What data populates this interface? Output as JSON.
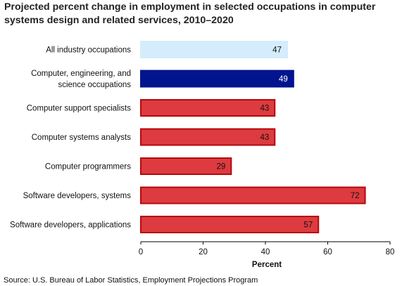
{
  "chart_data": {
    "type": "bar",
    "orientation": "horizontal",
    "title": "Projected percent change in employment in selected occupations in computer systems design and related services, 2010–2020",
    "xlabel": "Percent",
    "ylabel": "",
    "xlim": [
      0,
      80
    ],
    "xticks": [
      "0",
      "20",
      "40",
      "60",
      "80"
    ],
    "grid": false,
    "legend": "none",
    "bars": [
      {
        "label": "All industry occupations",
        "value": 47,
        "value_label": "47",
        "fill": "#d4ecfb",
        "stroke": "#d4ecfb",
        "label_color": "#111111"
      },
      {
        "label": "Computer, engineering, and|science occupations",
        "value": 49,
        "value_label": "49",
        "fill": "#02158e",
        "stroke": "#02158e",
        "label_color": "#ffffff"
      },
      {
        "label": "Computer support specialists",
        "value": 43,
        "value_label": "43",
        "fill": "#dd3b3f",
        "stroke": "#b5080d",
        "label_color": "#111111"
      },
      {
        "label": "Computer systems analysts",
        "value": 43,
        "value_label": "43",
        "fill": "#dd3b3f",
        "stroke": "#b5080d",
        "label_color": "#111111"
      },
      {
        "label": "Computer programmers",
        "value": 29,
        "value_label": "29",
        "fill": "#dd3b3f",
        "stroke": "#b5080d",
        "label_color": "#111111"
      },
      {
        "label": "Software developers, systems",
        "value": 72,
        "value_label": "72",
        "fill": "#dd3b3f",
        "stroke": "#b5080d",
        "label_color": "#111111"
      },
      {
        "label": "Software developers, applications",
        "value": 57,
        "value_label": "57",
        "fill": "#dd3b3f",
        "stroke": "#b5080d",
        "label_color": "#111111"
      }
    ],
    "source": "Source: U.S. Bureau of Labor Statistics, Employment Projections Program"
  }
}
